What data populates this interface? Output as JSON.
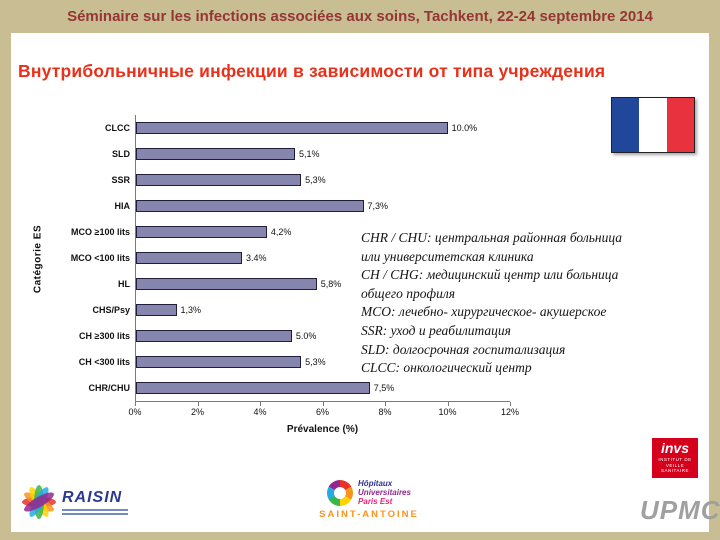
{
  "header": {
    "title": "Séminaire sur les infections associées aux soins, Tachkent, 22-24 septembre 2014"
  },
  "slide": {
    "title": "Внутрибольничные инфекции в зависимости от типа учреждения"
  },
  "chart_data": {
    "type": "bar",
    "orientation": "horizontal",
    "categories": [
      "CLCC",
      "SLD",
      "SSR",
      "HIA",
      "MCO ≥100 lits",
      "MCO <100 lits",
      "HL",
      "CHS/Psy",
      "CH ≥300 lits",
      "CH <300 lits",
      "CHR/CHU"
    ],
    "values": [
      10.0,
      5.1,
      5.3,
      7.3,
      4.2,
      3.4,
      5.8,
      1.3,
      5.0,
      5.3,
      7.5
    ],
    "value_labels": [
      "10.0%",
      "5,1%",
      "5,3%",
      "7,3%",
      "4,2%",
      "3.4%",
      "5,8%",
      "1,3%",
      "5.0%",
      "5,3%",
      "7,5%"
    ],
    "title": "",
    "xlabel": "Prévalence (%)",
    "ylabel": "Catégorie ES",
    "xlim": [
      0,
      12
    ],
    "x_ticks": [
      "0%",
      "2%",
      "4%",
      "6%",
      "8%",
      "10%",
      "12%"
    ],
    "grid": false,
    "legend": false,
    "bar_color": "#8585ad"
  },
  "annotation": {
    "text": "CHR / CHU: центральная районная больница\nили университетская клиника\nCH / CHG: медицинский центр или больница\nобщего профиля\n MCO: лечебно- хирургическое- акушерское\nSSR: уход и реабилитация\nSLD: долгосрочная госпитализация\nCLCC: онкологический центр"
  },
  "flag": {
    "name": "flag-of-france",
    "colors": {
      "blue": "#21479b",
      "white": "#ffffff",
      "red": "#e8333e"
    }
  },
  "logos": {
    "raisin": {
      "label": "RAISIN"
    },
    "paris_est": {
      "line1": "Hôpitaux",
      "line2": "Universitaires",
      "line3": "Paris Est",
      "subtitle": "SAINT-ANTOINE"
    },
    "invs": {
      "label": "invs",
      "subtitle": "INSTITUT DE VEILLE SANITAIRE"
    },
    "upmc": {
      "label": "UPMC"
    }
  },
  "colors": {
    "slide_border": "#c9bd93",
    "header_text": "#943634",
    "title_text": "#e8301a",
    "bar_fill": "#8585ad",
    "axis_gray": "#7a7a7a"
  }
}
